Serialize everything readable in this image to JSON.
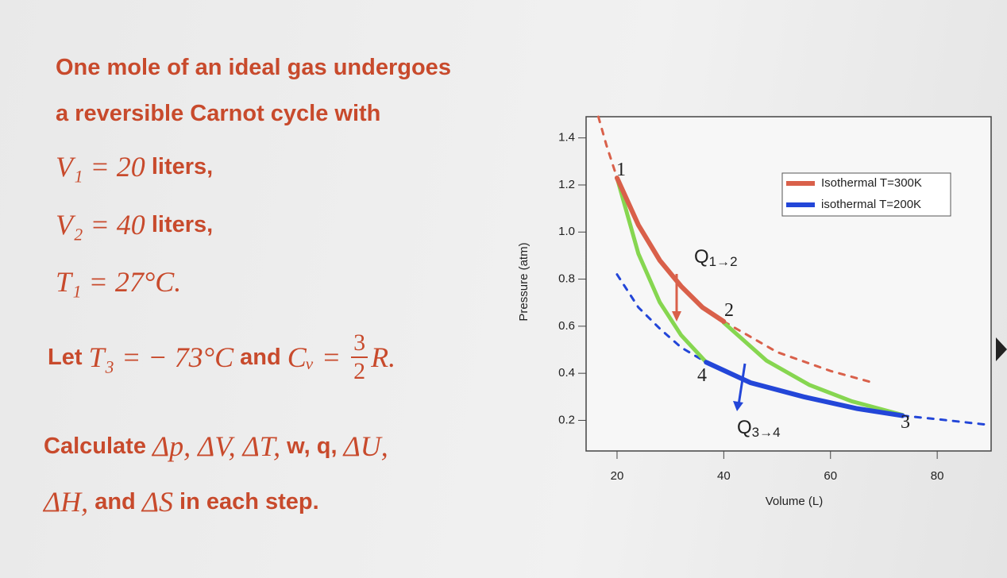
{
  "text": {
    "lines": [
      [
        {
          "text": "One mole of an ideal gas undergoes",
          "style": "plain"
        }
      ],
      [
        {
          "text": "a reversible Carnot cycle with",
          "style": "plain"
        }
      ],
      [
        {
          "text": "V₁ = 20",
          "style": "math"
        },
        {
          "text": " liters,",
          "style": "plain"
        }
      ],
      [
        {
          "text": "V₂ = 40",
          "style": "math"
        },
        {
          "text": " liters,",
          "style": "plain"
        }
      ],
      [
        {
          "text": "T₁ = 27°C.",
          "style": "math"
        }
      ],
      [
        {
          "text": "Let ",
          "style": "plain"
        },
        {
          "text": "T₃ = − 73°C",
          "style": "math"
        },
        {
          "text": " and ",
          "style": "plain"
        },
        {
          "text": "Cᵥ = ",
          "style": "math"
        },
        {
          "num": "3",
          "den": "2",
          "style": "frac"
        },
        {
          "text": "R.",
          "style": "math"
        }
      ],
      [
        {
          "text": "Calculate ",
          "style": "plain"
        },
        {
          "text": "Δp, ΔV, ΔT,",
          "style": "math"
        },
        {
          "text": " w, q, ",
          "style": "plain"
        },
        {
          "text": "ΔU,",
          "style": "math"
        }
      ],
      [
        {
          "text": "ΔH,",
          "style": "math"
        },
        {
          "text": " and ",
          "style": "plain"
        },
        {
          "text": "ΔS",
          "style": "math"
        },
        {
          "text": " in each step.",
          "style": "plain"
        }
      ]
    ]
  },
  "chart_data": {
    "type": "line",
    "x_label": "Volume (L)",
    "y_label": "Pressure (atm)",
    "xlim": [
      14.2,
      90.1
    ],
    "ylim": [
      0.07,
      1.49
    ],
    "xticks": [
      20,
      40,
      60,
      80
    ],
    "yticks": [
      0.2,
      0.4,
      0.6,
      0.8,
      {
        "value": 1,
        "label": "1.0"
      },
      1.2,
      1.4
    ],
    "legend": "upper right",
    "series": [
      {
        "name": "Isothermal T=300K",
        "color": "#d9604a",
        "x": [
          20,
          24,
          28,
          32,
          36,
          40
        ],
        "values": [
          1.23,
          1.03,
          0.88,
          0.77,
          0.68,
          0.62
        ]
      },
      {
        "name": "isothermal T=200K",
        "color": "#2346d8",
        "x": [
          36.7,
          45,
          55,
          65,
          73.5
        ],
        "values": [
          0.447,
          0.36,
          0.3,
          0.25,
          0.22
        ]
      }
    ],
    "curves": [
      {
        "color": "#d9604a",
        "style": "dashed",
        "x": [
          16.5,
          18,
          20
        ],
        "values": [
          1.49,
          1.37,
          1.23
        ]
      },
      {
        "color": "#d9604a",
        "style": "dashed",
        "x": [
          40,
          50,
          60,
          68
        ],
        "values": [
          0.62,
          0.49,
          0.41,
          0.36
        ]
      },
      {
        "color": "#2346d8",
        "style": "dashed",
        "x": [
          20,
          24,
          28,
          32,
          36.7
        ],
        "values": [
          0.82,
          0.68,
          0.59,
          0.51,
          0.447
        ]
      },
      {
        "color": "#2346d8",
        "style": "dashed",
        "x": [
          73.5,
          80,
          90
        ],
        "values": [
          0.22,
          0.205,
          0.18
        ]
      },
      {
        "color": "#86d650",
        "style": "solid",
        "x": [
          20,
          24,
          28,
          32,
          36.7
        ],
        "values": [
          1.23,
          0.908,
          0.702,
          0.562,
          0.447
        ]
      },
      {
        "color": "#86d650",
        "style": "solid",
        "x": [
          40,
          48,
          56,
          64,
          73.5
        ],
        "values": [
          0.615,
          0.454,
          0.351,
          0.281,
          0.223
        ]
      }
    ],
    "annotations": [
      {
        "text": "1"
      },
      {
        "text": "2"
      },
      {
        "text": "3"
      },
      {
        "text": "4"
      },
      {
        "text": "Q",
        "subscript": "1→2"
      },
      {
        "text": "Q",
        "subscript": "3→4"
      }
    ]
  }
}
